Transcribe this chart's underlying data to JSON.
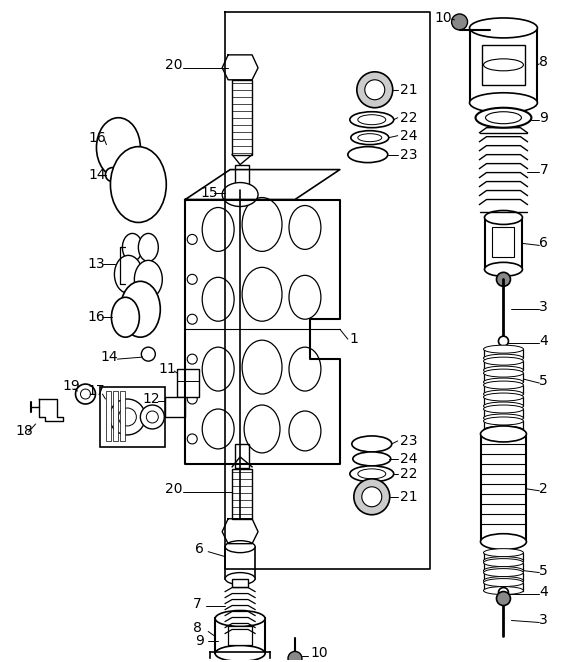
{
  "bg_color": "#ffffff",
  "line_color": "#000000",
  "fig_width": 5.7,
  "fig_height": 6.62,
  "dpi": 100
}
